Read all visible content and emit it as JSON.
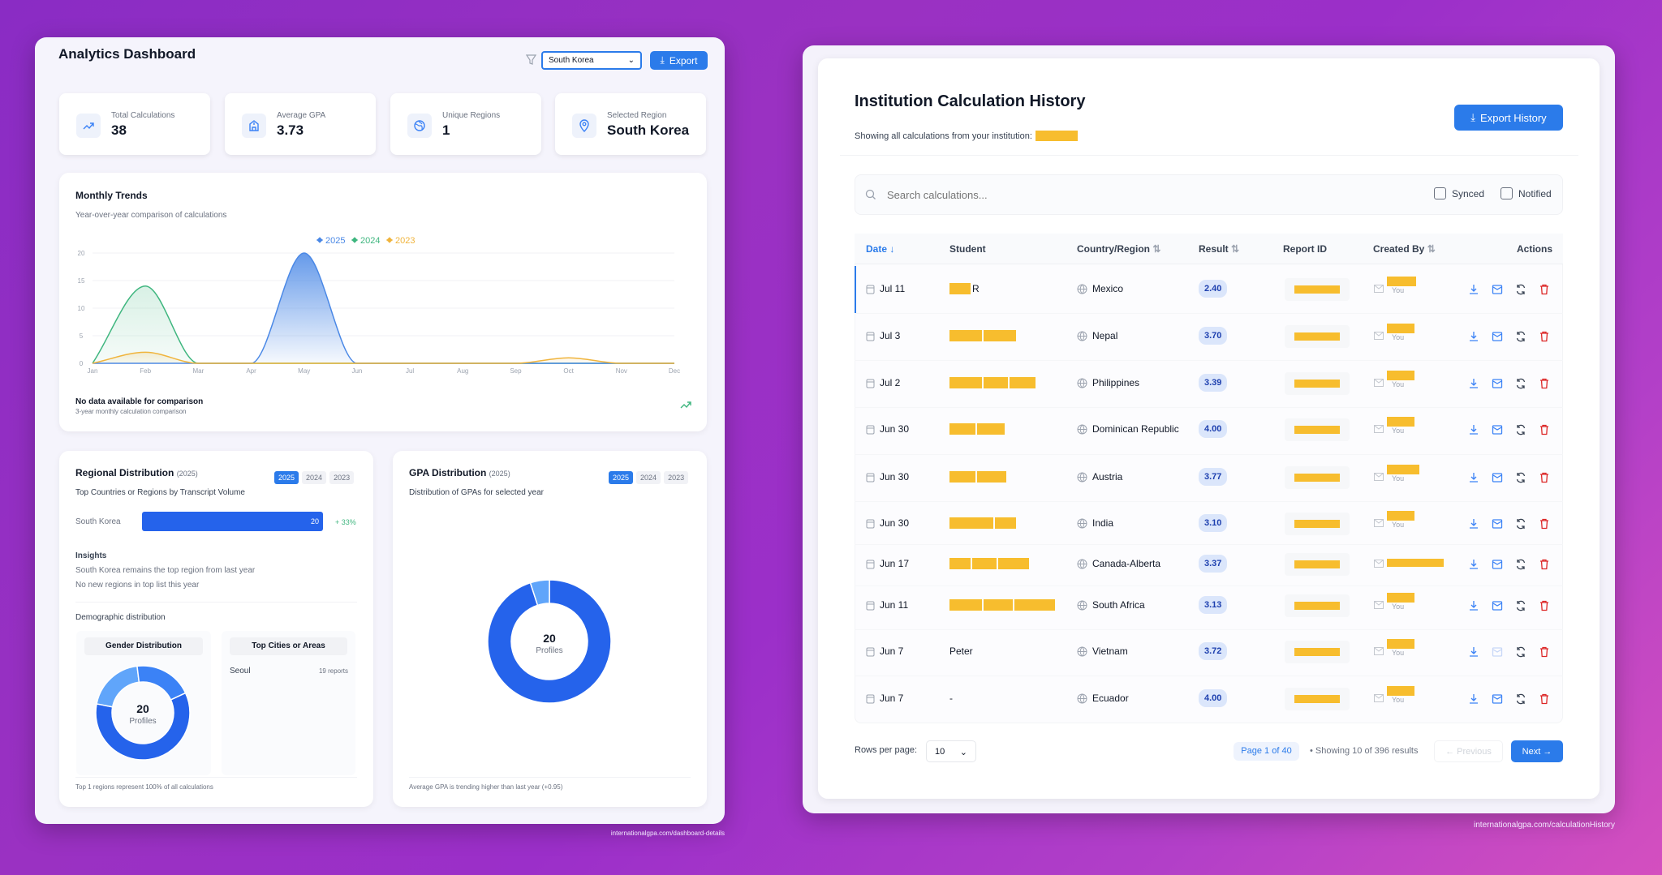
{
  "colors": {
    "primary": "#2b7bea",
    "series2025": "#4a88e6",
    "series2024": "#3fb67f",
    "series2023": "#f0b43c",
    "delete": "#dc2626",
    "redaction": "#f7bd2e"
  },
  "dashboard": {
    "title": "Analytics Dashboard",
    "filter_icon": "filter-icon",
    "region_select": "South Korea",
    "export_label": "Export",
    "stats": [
      {
        "label": "Total Calculations",
        "value": "38",
        "icon": "trending-up-icon"
      },
      {
        "label": "Average GPA",
        "value": "3.73",
        "icon": "school-icon"
      },
      {
        "label": "Unique Regions",
        "value": "1",
        "icon": "globe-icon"
      },
      {
        "label": "Selected Region",
        "value": "South Korea",
        "icon": "map-pin-icon"
      }
    ],
    "trends": {
      "title": "Monthly Trends",
      "subtitle": "Year-over-year comparison of calculations",
      "footer_title": "No data available for comparison",
      "footer_sub": "3-year monthly calculation comparison"
    },
    "regional": {
      "title": "Regional Distribution",
      "year": "(2025)",
      "years": [
        "2025",
        "2024",
        "2023"
      ],
      "subtitle": "Top Countries or Regions by Transcript Volume",
      "bars": [
        {
          "label": "South Korea",
          "value": 20,
          "value_label": "20",
          "change": "+ 33%"
        }
      ],
      "insights_title": "Insights",
      "insights": [
        "South Korea remains the top region from last year",
        "No new regions in top list this year"
      ],
      "demo_title": "Demographic distribution",
      "gender_title": "Gender Distribution",
      "gender_total": "20",
      "gender_unit": "Profiles",
      "gender_segments": [
        12,
        4,
        4
      ],
      "cities_title": "Top Cities or Areas",
      "cities": [
        {
          "name": "Seoul",
          "count": "19 reports"
        }
      ],
      "footer": "Top 1 regions represent 100% of all calculations"
    },
    "gpa": {
      "title": "GPA Distribution",
      "year": "(2025)",
      "years": [
        "2025",
        "2024",
        "2023"
      ],
      "subtitle": "Distribution of GPAs for selected year",
      "total": "20",
      "unit": "Profiles",
      "segments": [
        19,
        1
      ],
      "footer": "Average GPA is trending higher than last year (+0.95)"
    },
    "url": "internationalgpa.com/dashboard-details"
  },
  "chart_data": {
    "type": "area",
    "categories": [
      "Jan",
      "Feb",
      "Mar",
      "Apr",
      "May",
      "Jun",
      "Jul",
      "Aug",
      "Sep",
      "Oct",
      "Nov",
      "Dec"
    ],
    "yticks": [
      0,
      5,
      10,
      15,
      20
    ],
    "ylim": [
      0,
      20
    ],
    "grid": true,
    "legend": "top-center",
    "series": [
      {
        "name": "2025",
        "values": [
          0,
          0,
          0,
          0,
          20,
          0,
          0,
          0,
          0,
          0,
          0,
          0
        ]
      },
      {
        "name": "2024",
        "values": [
          0,
          14,
          0,
          0,
          0,
          0,
          0,
          0,
          0,
          0,
          0,
          0
        ]
      },
      {
        "name": "2023",
        "values": [
          0,
          2,
          0,
          0,
          0,
          0,
          0,
          0,
          0,
          1,
          0,
          0
        ]
      }
    ]
  },
  "history": {
    "title": "Institution Calculation History",
    "subtitle": "Showing all calculations from your institution:",
    "export_label": "Export History",
    "search_placeholder": "Search calculations...",
    "synced": "Synced",
    "notified": "Notified",
    "columns": [
      "Date",
      "Student",
      "Country/Region",
      "Result",
      "Report ID",
      "Created By",
      "Actions"
    ],
    "rows": [
      {
        "date": "Jul 11",
        "student": "R",
        "country": "Mexico",
        "result": "2.40",
        "created_sub": "You"
      },
      {
        "date": "Jul 3",
        "student": "",
        "country": "Nepal",
        "result": "3.70",
        "created_sub": "You"
      },
      {
        "date": "Jul 2",
        "student": "",
        "country": "Philippines",
        "result": "3.39",
        "created_sub": "You"
      },
      {
        "date": "Jun 30",
        "student": "",
        "country": "Dominican Republic",
        "result": "4.00",
        "created_sub": "You"
      },
      {
        "date": "Jun 30",
        "student": "",
        "country": "Austria",
        "result": "3.77",
        "created_sub": "You"
      },
      {
        "date": "Jun 30",
        "student": "",
        "country": "India",
        "result": "3.10",
        "created_sub": "You"
      },
      {
        "date": "Jun 17",
        "student": "",
        "country": "Canada-Alberta",
        "result": "3.37",
        "created_sub": ""
      },
      {
        "date": "Jun 11",
        "student": "",
        "country": "South Africa",
        "result": "3.13",
        "created_sub": "You"
      },
      {
        "date": "Jun 7",
        "student": "Peter",
        "country": "Vietnam",
        "result": "3.72",
        "created_sub": "You"
      },
      {
        "date": "Jun 7",
        "student": "-",
        "country": "Ecuador",
        "result": "4.00",
        "created_sub": "You"
      }
    ],
    "rows_per_page_label": "Rows per page:",
    "rows_per_page": "10",
    "page": "Page 1 of 40",
    "showing": "• Showing 10 of 396 results",
    "previous": "← Previous",
    "next": "Next →",
    "url": "internationalgpa.com/calculationHistory"
  }
}
